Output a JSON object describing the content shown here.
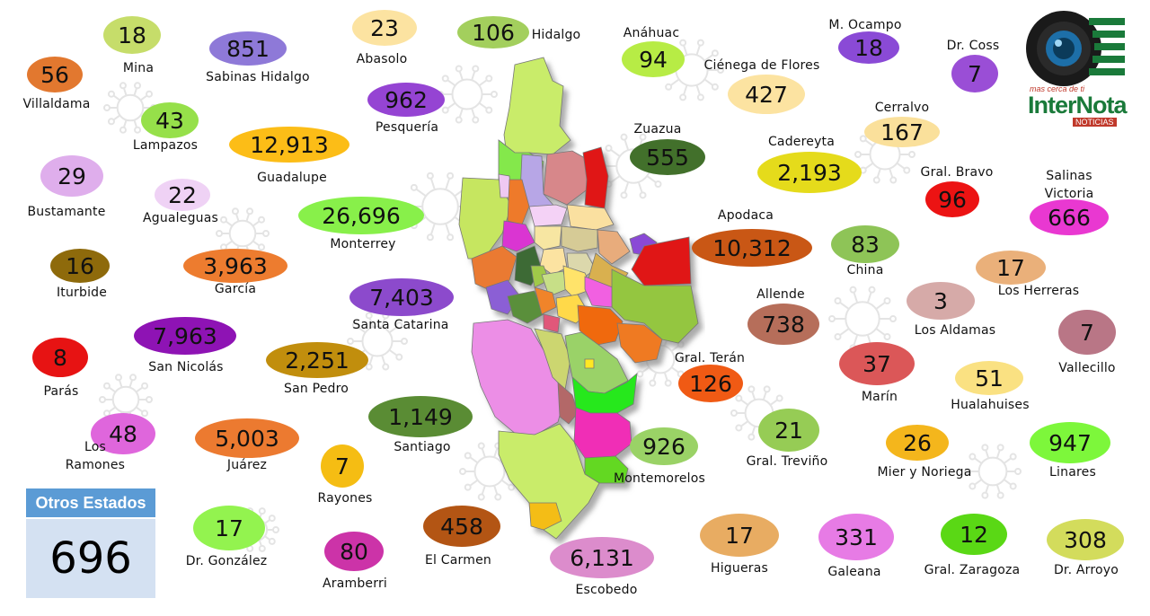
{
  "municipalities": [
    {
      "name": "Mina",
      "value": "18",
      "color": "#c6dd6a"
    },
    {
      "name": "Sabinas Hidalgo",
      "value": "851",
      "color": "#8e79d8"
    },
    {
      "name": "Abasolo",
      "value": "23",
      "color": "#fce3a1"
    },
    {
      "name": "Hidalgo",
      "value": "106",
      "color": "#a3cf5d"
    },
    {
      "name": "Anáhuac",
      "value": "94",
      "color": "#b7ec45"
    },
    {
      "name": "M. Ocampo",
      "value": "18",
      "color": "#8a4ad6"
    },
    {
      "name": "Dr. Coss",
      "value": "7",
      "color": "#9a4ed6"
    },
    {
      "name": "Villaldama",
      "value": "56",
      "color": "#e2782f"
    },
    {
      "name": "Lampazos",
      "value": "43",
      "color": "#96e04a"
    },
    {
      "name": "Pesquería",
      "value": "962",
      "color": "#9544d3"
    },
    {
      "name": "Ciénega de Flores",
      "value": "427",
      "color": "#fce3a1"
    },
    {
      "name": "Guadalupe",
      "value": "12,913",
      "color": "#fcbd17"
    },
    {
      "name": "Zuazua",
      "value": "555",
      "color": "#42702b"
    },
    {
      "name": "Cerralvo",
      "value": "167",
      "color": "#fae09b"
    },
    {
      "name": "Cadereyta",
      "value": "2,193",
      "color": "#e5db1b"
    },
    {
      "name": "Bustamante",
      "value": "29",
      "color": "#dfaeec"
    },
    {
      "name": "Agualeguas",
      "value": "22",
      "color": "#efd2f5"
    },
    {
      "name": "Gral. Bravo",
      "value": "96",
      "color": "#ec1313"
    },
    {
      "name": "Salinas Victoria",
      "value": "666",
      "color": "#e938d1"
    },
    {
      "name": "Monterrey",
      "value": "26,696",
      "color": "#88f04a"
    },
    {
      "name": "Apodaca",
      "value": "10,312",
      "color": "#c95715"
    },
    {
      "name": "China",
      "value": "83",
      "color": "#8ec457"
    },
    {
      "name": "Iturbide",
      "value": "16",
      "color": "#8e6a0b"
    },
    {
      "name": "García",
      "value": "3,963",
      "color": "#ed7c2f"
    },
    {
      "name": "Los Herreras",
      "value": "17",
      "color": "#eab07a"
    },
    {
      "name": "Santa Catarina",
      "value": "7,403",
      "color": "#8c4acc"
    },
    {
      "name": "Los Aldamas",
      "value": "3",
      "color": "#d6aaa8"
    },
    {
      "name": "Allende",
      "value": "738",
      "color": "#b66e5a"
    },
    {
      "name": "Vallecillo",
      "value": "7",
      "color": "#b97686"
    },
    {
      "name": "Parás",
      "value": "8",
      "color": "#e71313"
    },
    {
      "name": "San Nicolás",
      "value": "7,963",
      "color": "#8e13b4"
    },
    {
      "name": "San Pedro",
      "value": "2,251",
      "color": "#c18e0d"
    },
    {
      "name": "Gral. Terán",
      "value": "126",
      "color": "#f05a14"
    },
    {
      "name": "Marín",
      "value": "37",
      "color": "#db5758"
    },
    {
      "name": "Hualahuises",
      "value": "51",
      "color": "#fae182"
    },
    {
      "name": "Los Ramones",
      "value": "48",
      "color": "#df66dc"
    },
    {
      "name": "Santiago",
      "value": "1,149",
      "color": "#5a8c34"
    },
    {
      "name": "Juárez",
      "value": "5,003",
      "color": "#ec7a30"
    },
    {
      "name": "Gral. Treviño",
      "value": "21",
      "color": "#96cc55"
    },
    {
      "name": "Rayones",
      "value": "7",
      "color": "#f5bd13"
    },
    {
      "name": "Montemorelos",
      "value": "926",
      "color": "#9ad266"
    },
    {
      "name": "Mier y Noriega",
      "value": "26",
      "color": "#f4b61c"
    },
    {
      "name": "Linares",
      "value": "947",
      "color": "#7df73b"
    },
    {
      "name": "Dr. González",
      "value": "17",
      "color": "#93f34f"
    },
    {
      "name": "El Carmen",
      "value": "458",
      "color": "#b35514"
    },
    {
      "name": "Aramberri",
      "value": "80",
      "color": "#cc33a8"
    },
    {
      "name": "Escobedo",
      "value": "6,131",
      "color": "#dc8ccc"
    },
    {
      "name": "Higueras",
      "value": "17",
      "color": "#e8ac62"
    },
    {
      "name": "Galeana",
      "value": "331",
      "color": "#e77be5"
    },
    {
      "name": "Gral. Zaragoza",
      "value": "12",
      "color": "#5ad815"
    },
    {
      "name": "Dr. Arroyo",
      "value": "308",
      "color": "#d3dc5c"
    }
  ],
  "otros": {
    "label": "Otros Estados",
    "value": "696"
  },
  "logo": {
    "tagline": "mas cerca de ti",
    "brand": "InterNota",
    "sub": "NOTICIAS"
  }
}
